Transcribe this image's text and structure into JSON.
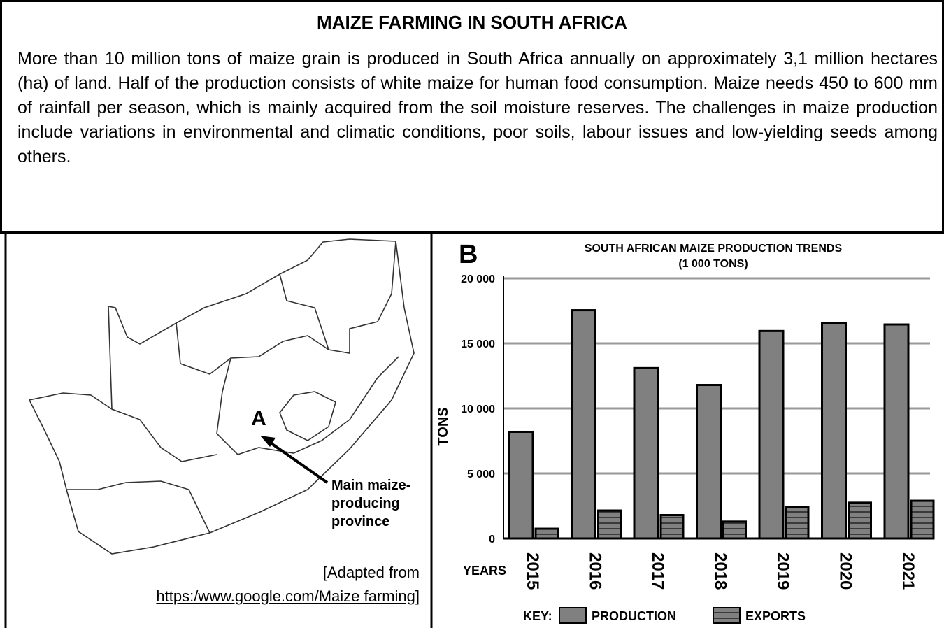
{
  "title": "MAIZE FARMING IN SOUTH AFRICA",
  "paragraph": "More than 10 million tons of maize grain is produced in South Africa annually on approximately 3,1 million hectares (ha) of land. Half of the production consists of white maize for human food consumption. Maize needs 450 to 600 mm of rainfall per season, which is mainly acquired from the soil moisture reserves. The challenges in maize production include variations in environmental and climatic conditions, poor soils, labour issues and low-yielding seeds among others.",
  "map": {
    "label": "A",
    "callout": "Main maize-producing province",
    "source": [
      "[Adapted from",
      "https:/www.google.com/Maize farming]"
    ]
  },
  "chart_data": {
    "type": "bar",
    "panel_label": "B",
    "title": [
      "SOUTH AFRICAN MAIZE PRODUCTION TRENDS",
      "(1 000 TONS)"
    ],
    "y_label": "TONS",
    "x_label": "YEARS",
    "key_label": "KEY:",
    "categories": [
      "2015",
      "2016",
      "2017",
      "2018",
      "2019",
      "2020",
      "2021"
    ],
    "series": [
      {
        "name": "PRODUCTION",
        "color": "#808080",
        "values": [
          8200,
          17550,
          13100,
          11800,
          15950,
          16550,
          16450
        ]
      },
      {
        "name": "EXPORTS",
        "color": "#808080",
        "pattern": "horizontal-lines",
        "values": [
          750,
          2150,
          1800,
          1300,
          2400,
          2750,
          2900
        ]
      }
    ],
    "ylim": [
      0,
      20000
    ],
    "yticks": [
      {
        "value": 0,
        "label": "0"
      },
      {
        "value": 5000,
        "label": "5 000"
      },
      {
        "value": 10000,
        "label": "10 000"
      },
      {
        "value": 15000,
        "label": "15 000"
      },
      {
        "value": 20000,
        "label": "20 000"
      }
    ],
    "grid": true
  }
}
